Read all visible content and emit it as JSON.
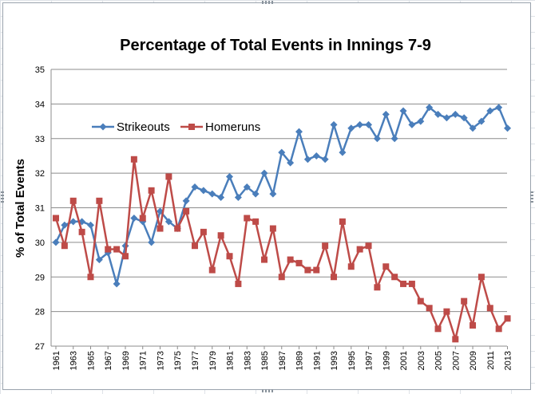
{
  "chart_data": {
    "type": "line",
    "title": "Percentage of Total Events in Innings 7-9",
    "xlabel": "",
    "ylabel": "% of Total Events",
    "ylim": [
      27,
      35
    ],
    "yticks": [
      "27",
      "28",
      "29",
      "30",
      "31",
      "32",
      "33",
      "34",
      "35"
    ],
    "grid": "horizontal",
    "legend_position": "upper-left-inside",
    "x": [
      1961,
      1962,
      1963,
      1964,
      1965,
      1966,
      1967,
      1968,
      1969,
      1970,
      1971,
      1972,
      1973,
      1974,
      1975,
      1976,
      1977,
      1978,
      1979,
      1980,
      1981,
      1982,
      1983,
      1984,
      1985,
      1986,
      1987,
      1988,
      1989,
      1990,
      1991,
      1992,
      1993,
      1994,
      1995,
      1996,
      1997,
      1998,
      1999,
      2000,
      2001,
      2002,
      2003,
      2004,
      2005,
      2006,
      2007,
      2008,
      2009,
      2010,
      2011,
      2012,
      2013
    ],
    "xtick_labels": [
      "1961",
      "1963",
      "1965",
      "1967",
      "1969",
      "1971",
      "1973",
      "1975",
      "1977",
      "1979",
      "1981",
      "1983",
      "1985",
      "1987",
      "1989",
      "1991",
      "1993",
      "1995",
      "1997",
      "1999",
      "2001",
      "2003",
      "2005",
      "2007",
      "2009",
      "2011",
      "2013"
    ],
    "series": [
      {
        "name": "Strikeouts",
        "color": "#4a7ebb",
        "marker": "diamond",
        "values": [
          30.0,
          30.5,
          30.6,
          30.6,
          30.5,
          29.5,
          29.7,
          28.8,
          29.9,
          30.7,
          30.6,
          30.0,
          30.9,
          30.6,
          30.4,
          31.2,
          31.6,
          31.5,
          31.4,
          31.3,
          31.9,
          31.3,
          31.6,
          31.4,
          32.0,
          31.4,
          32.6,
          32.3,
          33.2,
          32.4,
          32.5,
          32.4,
          33.4,
          32.6,
          33.3,
          33.4,
          33.4,
          33.0,
          33.7,
          33.0,
          33.8,
          33.4,
          33.5,
          33.9,
          33.7,
          33.6,
          33.7,
          33.6,
          33.3,
          33.5,
          33.8,
          33.9,
          33.3
        ]
      },
      {
        "name": "Homeruns",
        "color": "#be4b48",
        "marker": "square",
        "values": [
          30.7,
          29.9,
          31.2,
          30.3,
          29.0,
          31.2,
          29.8,
          29.8,
          29.6,
          32.4,
          30.7,
          31.5,
          30.4,
          31.9,
          30.4,
          30.9,
          29.9,
          30.3,
          29.2,
          30.2,
          29.6,
          28.8,
          30.7,
          30.6,
          29.5,
          30.4,
          29.0,
          29.5,
          29.4,
          29.2,
          29.2,
          29.9,
          29.0,
          30.6,
          29.3,
          29.8,
          29.9,
          28.7,
          29.3,
          29.0,
          28.8,
          28.8,
          28.3,
          28.1,
          27.5,
          28.0,
          27.2,
          28.3,
          27.6,
          29.0,
          28.1,
          27.5,
          27.8
        ]
      }
    ]
  }
}
